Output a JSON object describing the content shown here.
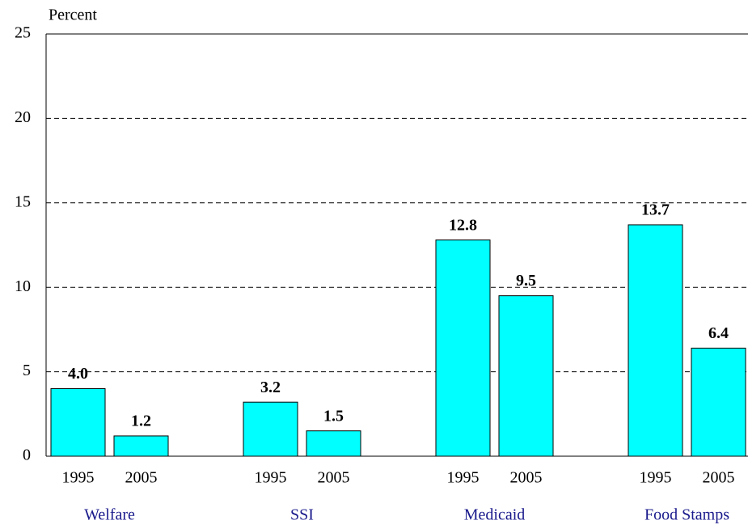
{
  "chart_data": {
    "type": "bar",
    "y_label": "Percent",
    "categories": [
      "Welfare",
      "SSI",
      "Medicaid",
      "Food Stamps"
    ],
    "series": [
      {
        "name": "1995",
        "color": "#00ffff",
        "values": [
          4.0,
          3.2,
          12.8,
          13.7
        ],
        "value_labels": [
          "4.0",
          "3.2",
          "12.8",
          "13.7"
        ]
      },
      {
        "name": "2005",
        "color": "#00ffff",
        "values": [
          1.2,
          1.5,
          9.5,
          6.4
        ],
        "value_labels": [
          "1.2",
          "1.5",
          "9.5",
          "6.4"
        ]
      }
    ],
    "ylim": [
      0,
      25
    ],
    "yticks": [
      0,
      5,
      10,
      15,
      20,
      25
    ],
    "grid": true
  }
}
